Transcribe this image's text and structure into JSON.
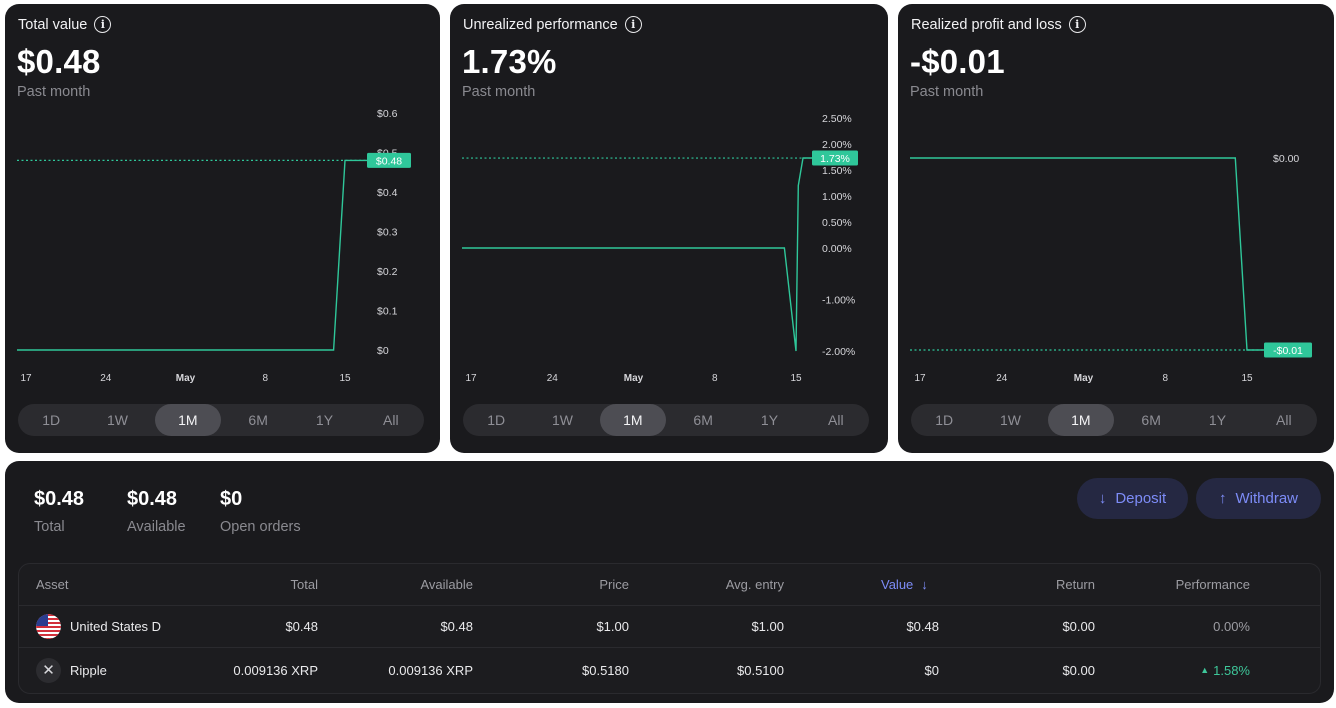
{
  "cards": [
    {
      "title": "Total value",
      "value": "$0.48",
      "subtitle": "Past month",
      "y_ticks": [
        "$0.6",
        "$0.5",
        "$0.4",
        "$0.3",
        "$0.2",
        "$0.1",
        "$0"
      ],
      "x_ticks": [
        "17",
        "24",
        "May",
        "8",
        "15"
      ],
      "current_label": "$0.48",
      "ranges": [
        "1D",
        "1W",
        "1M",
        "6M",
        "1Y",
        "All"
      ],
      "active_range": "1M"
    },
    {
      "title": "Unrealized performance",
      "value": "1.73%",
      "subtitle": "Past month",
      "y_ticks": [
        "2.50%",
        "2.00%",
        "1.50%",
        "1.00%",
        "0.50%",
        "0.00%",
        "-1.00%",
        "-2.00%"
      ],
      "x_ticks": [
        "17",
        "24",
        "May",
        "8",
        "15"
      ],
      "current_label": "1.73%",
      "ranges": [
        "1D",
        "1W",
        "1M",
        "6M",
        "1Y",
        "All"
      ],
      "active_range": "1M"
    },
    {
      "title": "Realized profit and loss",
      "value": "-$0.01",
      "subtitle": "Past month",
      "y_ticks": [
        "$0.00"
      ],
      "x_ticks": [
        "17",
        "24",
        "May",
        "8",
        "15"
      ],
      "current_label": "-$0.01",
      "ranges": [
        "1D",
        "1W",
        "1M",
        "6M",
        "1Y",
        "All"
      ],
      "active_range": "1M"
    }
  ],
  "chart_data": [
    {
      "type": "line",
      "x": [
        "Apr 15",
        "May 14",
        "May 15",
        "May 18"
      ],
      "values": [
        0,
        0,
        0.48,
        0.48
      ],
      "ylim": [
        0,
        0.6
      ],
      "x_ticks": [
        "17",
        "24",
        "May",
        "8",
        "15"
      ],
      "reference_line": 0.48
    },
    {
      "type": "line",
      "x": [
        "Apr 15",
        "May 14",
        "May 15",
        "May 15.2",
        "May 15.6",
        "May 18"
      ],
      "values": [
        0,
        0,
        -2.0,
        1.2,
        1.73,
        1.73
      ],
      "ylim": [
        -2.0,
        2.5
      ],
      "x_ticks": [
        "17",
        "24",
        "May",
        "8",
        "15"
      ],
      "reference_line": 1.73
    },
    {
      "type": "line",
      "x": [
        "Apr 15",
        "May 14",
        "May 15",
        "May 18"
      ],
      "values": [
        0,
        0,
        -0.01,
        -0.01
      ],
      "x_ticks": [
        "17",
        "24",
        "May",
        "8",
        "15"
      ],
      "reference_line": -0.01
    }
  ],
  "summary": [
    {
      "value": "$0.48",
      "label": "Total"
    },
    {
      "value": "$0.48",
      "label": "Available"
    },
    {
      "value": "$0",
      "label": "Open orders"
    }
  ],
  "actions": {
    "deposit": "Deposit",
    "withdraw": "Withdraw"
  },
  "table": {
    "headers": [
      "Asset",
      "Total",
      "Available",
      "Price",
      "Avg. entry",
      "Value",
      "Return",
      "Performance"
    ],
    "sorted_by": "Value",
    "rows": [
      {
        "asset": "United States D",
        "icon": "us-flag-icon",
        "total": "$0.48",
        "available": "$0.48",
        "price": "$1.00",
        "avg_entry": "$1.00",
        "value": "$0.48",
        "return": "$0.00",
        "performance": "0.00%"
      },
      {
        "asset": "Ripple",
        "icon": "ripple-icon",
        "total": "0.009136 XRP",
        "available": "0.009136 XRP",
        "price": "$0.5180",
        "avg_entry": "$0.5100",
        "value": "$0",
        "return": "$0.00",
        "performance": "1.58%",
        "performance_direction": "up"
      }
    ]
  },
  "colors": {
    "line": "#2fc79a",
    "accent": "#7d8cf7",
    "label_bg": "#2fc79a",
    "card_bg": "#1a1a1d"
  }
}
